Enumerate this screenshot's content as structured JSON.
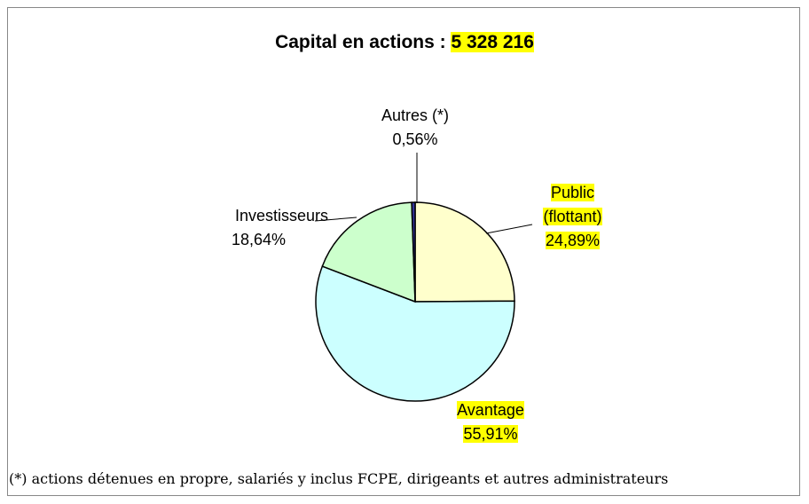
{
  "chart_data": {
    "type": "pie",
    "title": "Capital en actions :",
    "title_highlight": "5 328 216",
    "categories": [
      "Public (flottant)",
      "Avantage",
      "Investisseurs",
      "Autres (*)"
    ],
    "values": [
      24.89,
      55.91,
      18.64,
      0.56
    ],
    "value_labels": [
      "24,89%",
      "55,91%",
      "18,64%",
      "0,56%"
    ],
    "colors": [
      "#ffffcc",
      "#ccffff",
      "#ccffcc",
      "#333399"
    ],
    "label_highlight": [
      true,
      true,
      false,
      false
    ],
    "highlight_color": "#ffff00",
    "footnote": "(*) actions détenues en propre, salariés y inclus FCPE, dirigeants et autres administrateurs"
  }
}
